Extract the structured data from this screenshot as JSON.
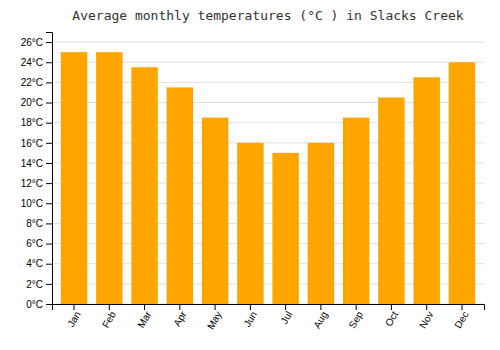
{
  "chart_data": {
    "type": "bar",
    "title": "Average monthly temperatures (°C ) in Slacks Creek",
    "categories": [
      "Jan",
      "Feb",
      "Mar",
      "Apr",
      "May",
      "Jun",
      "Jul",
      "Aug",
      "Sep",
      "Oct",
      "Nov",
      "Dec"
    ],
    "values": [
      25.0,
      25.0,
      23.5,
      21.5,
      18.5,
      16.0,
      15.0,
      16.0,
      18.5,
      20.5,
      22.5,
      24.0
    ],
    "color": "#FFA500",
    "ylim": [
      0,
      27
    ],
    "yticks": [
      {
        "value": 0,
        "label": "0°C"
      },
      {
        "value": 2,
        "label": "2°C"
      },
      {
        "value": 4,
        "label": "4°C"
      },
      {
        "value": 6,
        "label": "6°C"
      },
      {
        "value": 8,
        "label": "8°C"
      },
      {
        "value": 10,
        "label": "10°C"
      },
      {
        "value": 12,
        "label": "12°C"
      },
      {
        "value": 14,
        "label": "14°C"
      },
      {
        "value": 16,
        "label": "16°C"
      },
      {
        "value": 18,
        "label": "18°C"
      },
      {
        "value": 20,
        "label": "20°C"
      },
      {
        "value": 22,
        "label": "22°C"
      },
      {
        "value": 24,
        "label": "24°C"
      },
      {
        "value": 26,
        "label": "26°C"
      }
    ],
    "grid": true
  }
}
